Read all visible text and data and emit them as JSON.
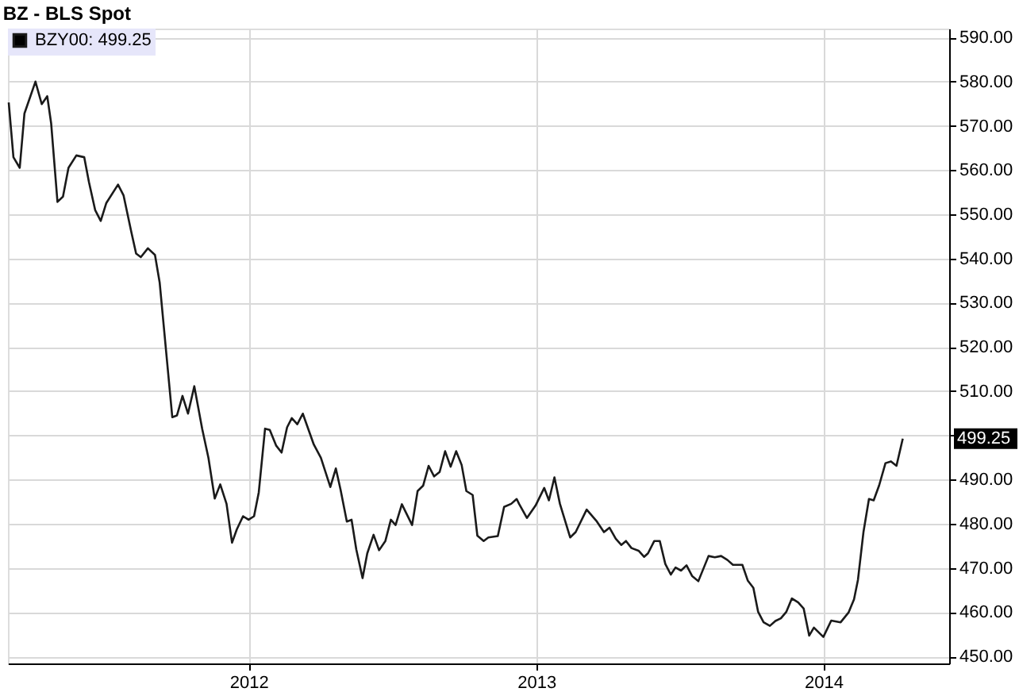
{
  "chart_data": {
    "type": "line",
    "title": "BZ - BLS Spot",
    "x": [
      "2011-03-02",
      "2011-03-08",
      "2011-03-16",
      "2011-03-22",
      "2011-04-05",
      "2011-04-13",
      "2011-04-20",
      "2011-04-25",
      "2011-05-03",
      "2011-05-10",
      "2011-05-17",
      "2011-05-27",
      "2011-06-06",
      "2011-06-12",
      "2011-06-20",
      "2011-06-27",
      "2011-07-04",
      "2011-07-19",
      "2011-07-26",
      "2011-08-05",
      "2011-08-11",
      "2011-08-17",
      "2011-08-26",
      "2011-09-04",
      "2011-09-10",
      "2011-09-26",
      "2011-10-02",
      "2011-10-09",
      "2011-10-16",
      "2011-10-24",
      "2011-11-03",
      "2011-11-11",
      "2011-11-19",
      "2011-11-26",
      "2011-12-04",
      "2011-12-11",
      "2011-12-17",
      "2011-12-25",
      "2012-01-01",
      "2012-01-08",
      "2012-01-14",
      "2012-01-22",
      "2012-01-28",
      "2012-02-05",
      "2012-02-12",
      "2012-02-19",
      "2012-02-25",
      "2012-03-03",
      "2012-03-10",
      "2012-03-24",
      "2012-04-02",
      "2012-04-14",
      "2012-04-21",
      "2012-04-27",
      "2012-05-05",
      "2012-05-11",
      "2012-05-17",
      "2012-05-25",
      "2012-05-31",
      "2012-06-08",
      "2012-06-15",
      "2012-06-23",
      "2012-06-30",
      "2012-07-06",
      "2012-07-14",
      "2012-07-27",
      "2012-08-03",
      "2012-08-10",
      "2012-08-17",
      "2012-08-24",
      "2012-08-31",
      "2012-09-07",
      "2012-09-14",
      "2012-09-21",
      "2012-09-28",
      "2012-10-04",
      "2012-10-12",
      "2012-10-18",
      "2012-10-26",
      "2012-11-01",
      "2012-11-13",
      "2012-11-21",
      "2012-11-30",
      "2012-12-07",
      "2012-12-10",
      "2012-12-20",
      "2012-12-31",
      "2013-01-11",
      "2013-01-17",
      "2013-01-24",
      "2013-01-31",
      "2013-02-13",
      "2013-02-20",
      "2013-03-06",
      "2013-03-19",
      "2013-03-28",
      "2013-04-04",
      "2013-04-12",
      "2013-04-19",
      "2013-04-25",
      "2013-05-02",
      "2013-05-11",
      "2013-05-18",
      "2013-05-23",
      "2013-05-31",
      "2013-06-07",
      "2013-06-14",
      "2013-06-21",
      "2013-06-27",
      "2013-07-04",
      "2013-07-11",
      "2013-07-18",
      "2013-07-26",
      "2013-08-08",
      "2013-08-16",
      "2013-08-24",
      "2013-09-01",
      "2013-09-08",
      "2013-09-20",
      "2013-09-27",
      "2013-10-04",
      "2013-10-10",
      "2013-10-17",
      "2013-10-25",
      "2013-11-01",
      "2013-11-08",
      "2013-11-15",
      "2013-11-22",
      "2013-11-30",
      "2013-12-07",
      "2013-12-14",
      "2013-12-20",
      "2014-01-01",
      "2014-01-11",
      "2014-01-23",
      "2014-02-02",
      "2014-02-09",
      "2014-02-14",
      "2014-02-21",
      "2014-02-28",
      "2014-03-06",
      "2014-03-13",
      "2014-03-21",
      "2014-03-28",
      "2014-04-04",
      "2014-04-12"
    ],
    "series": [
      {
        "name": "BZY00: 499.25",
        "color": "#1a1a1a",
        "values": [
          575.3,
          562.9,
          560.5,
          572.8,
          580.0,
          574.9,
          576.7,
          570.5,
          552.8,
          554.0,
          560.5,
          563.3,
          562.9,
          557.3,
          550.9,
          548.5,
          552.5,
          556.7,
          554.3,
          545.9,
          541.1,
          540.3,
          542.3,
          540.8,
          534.5,
          504.1,
          504.5,
          508.9,
          504.9,
          511.1,
          501.5,
          494.9,
          485.7,
          488.9,
          484.5,
          475.7,
          478.7,
          481.7,
          480.9,
          481.7,
          487.1,
          501.5,
          501.2,
          497.7,
          496.1,
          501.8,
          503.9,
          502.5,
          504.9,
          497.9,
          494.9,
          488.3,
          492.5,
          487.7,
          480.5,
          480.9,
          474.2,
          467.7,
          473.3,
          477.5,
          474.0,
          476.1,
          480.9,
          479.7,
          484.4,
          479.7,
          487.4,
          488.6,
          493.1,
          490.7,
          491.7,
          496.4,
          492.9,
          496.4,
          493.3,
          487.4,
          486.5,
          477.3,
          476.1,
          476.9,
          477.2,
          483.8,
          484.5,
          485.6,
          484.5,
          481.3,
          484.1,
          488.1,
          485.3,
          490.5,
          484.5,
          476.9,
          478.1,
          483.2,
          480.5,
          478.1,
          479.1,
          476.6,
          475.2,
          476.1,
          474.5,
          473.9,
          472.5,
          473.3,
          476.1,
          476.1,
          470.9,
          468.5,
          470.1,
          469.4,
          470.6,
          468.2,
          467.0,
          472.7,
          472.4,
          472.7,
          471.8,
          470.7,
          470.7,
          467.1,
          465.5,
          460.1,
          457.7,
          456.9,
          458.0,
          458.6,
          460.1,
          463.1,
          462.2,
          460.8,
          454.7,
          456.5,
          454.4,
          458.1,
          457.7,
          459.9,
          462.9,
          467.3,
          478.1,
          485.6,
          485.3,
          488.7,
          493.7,
          494.1,
          493.1,
          499.25
        ]
      }
    ],
    "xlim": [
      "2011-03-01",
      "2014-06-10"
    ],
    "xticks": [
      "2012",
      "2013",
      "2014"
    ],
    "ylim": [
      448.4,
      592
    ],
    "yticks": [
      {
        "value": 450,
        "label": "450.00"
      },
      {
        "value": 460,
        "label": "460.00"
      },
      {
        "value": 470,
        "label": "470.00"
      },
      {
        "value": 480,
        "label": "480.00"
      },
      {
        "value": 490,
        "label": "490.00"
      },
      {
        "value": 500,
        "label": null
      },
      {
        "value": 510,
        "label": "510.00"
      },
      {
        "value": 520,
        "label": "520.00"
      },
      {
        "value": 530,
        "label": "530.00"
      },
      {
        "value": 540,
        "label": "540.00"
      },
      {
        "value": 550,
        "label": "550.00"
      },
      {
        "value": 560,
        "label": "560.00"
      },
      {
        "value": 570,
        "label": "570.00"
      },
      {
        "value": 580,
        "label": "580.00"
      },
      {
        "value": 590,
        "label": "590.00"
      }
    ],
    "annotations": [
      "499.25"
    ],
    "grid": true,
    "legend": "top left",
    "marker": "none",
    "line_style": "solid"
  }
}
